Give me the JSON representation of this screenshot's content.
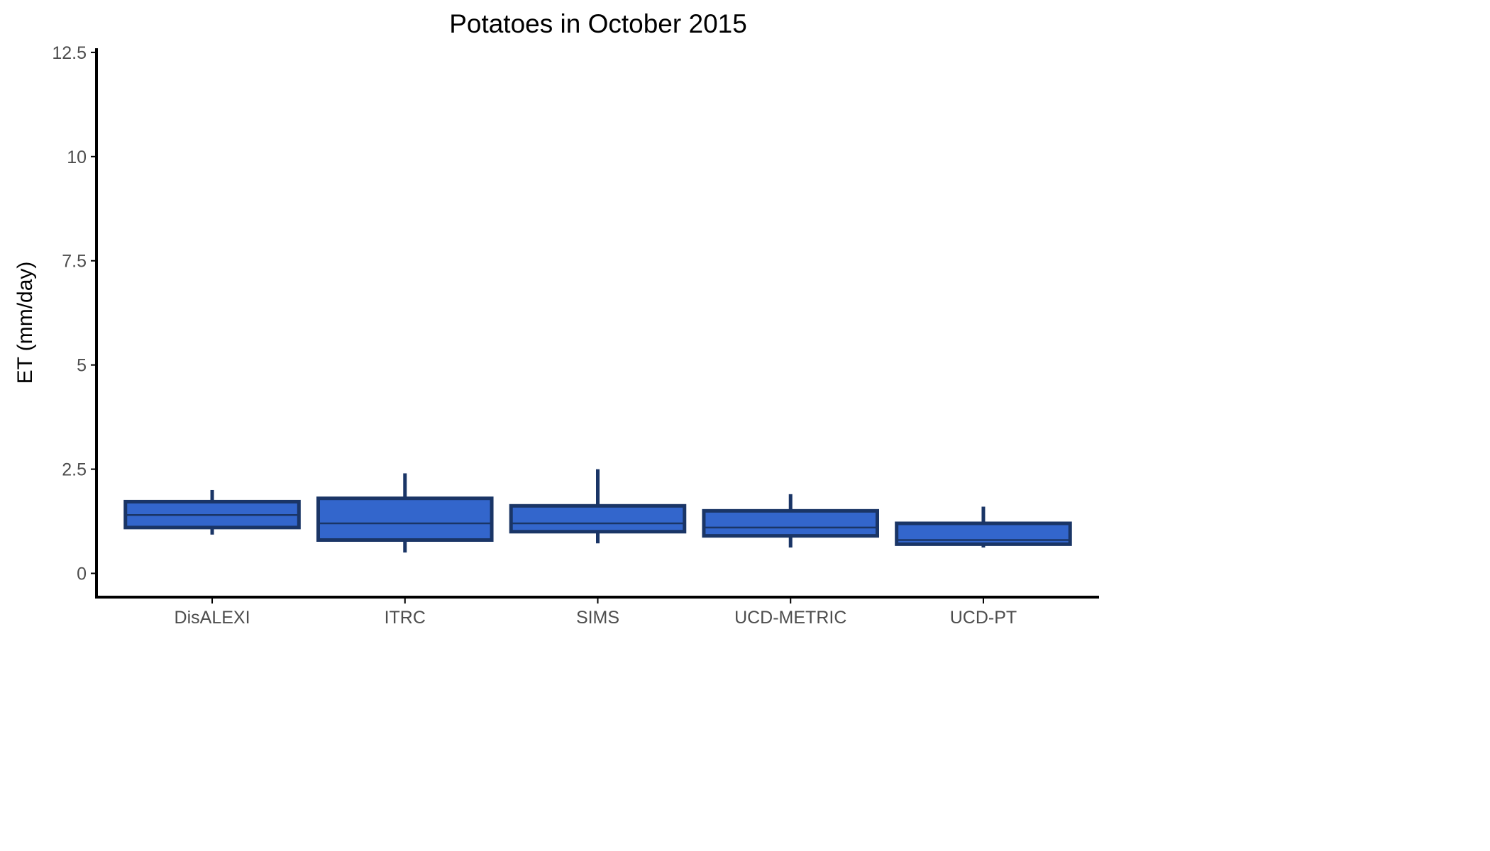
{
  "chart_data": {
    "type": "box",
    "title": "Potatoes in October 2015",
    "xlabel": "",
    "ylabel": "ET (mm/day)",
    "ylim": [
      -0.57,
      12.6
    ],
    "yticks": [
      0,
      2.5,
      5,
      7.5,
      10,
      12.5
    ],
    "ytick_labels": [
      "0",
      "2.5",
      "5",
      "7.5",
      "10",
      "12.5"
    ],
    "categories": [
      "DisALEXI",
      "ITRC",
      "SIMS",
      "UCD-METRIC",
      "UCD-PT"
    ],
    "boxes": [
      {
        "category": "DisALEXI",
        "whisker_low": 0.93,
        "q1": 1.1,
        "median": 1.4,
        "q3": 1.72,
        "whisker_high": 2.0
      },
      {
        "category": "ITRC",
        "whisker_low": 0.5,
        "q1": 0.8,
        "median": 1.2,
        "q3": 1.8,
        "whisker_high": 2.4
      },
      {
        "category": "SIMS",
        "whisker_low": 0.72,
        "q1": 1.0,
        "median": 1.2,
        "q3": 1.62,
        "whisker_high": 2.5
      },
      {
        "category": "UCD-METRIC",
        "whisker_low": 0.62,
        "q1": 0.9,
        "median": 1.1,
        "q3": 1.5,
        "whisker_high": 1.9
      },
      {
        "category": "UCD-PT",
        "whisker_low": 0.62,
        "q1": 0.7,
        "median": 0.8,
        "q3": 1.2,
        "whisker_high": 1.6
      }
    ],
    "colors": {
      "box_fill": "#3366cc",
      "box_outline": "#1a3566",
      "axis": "#000000",
      "tick_label": "#4d4d4d"
    },
    "grid": false,
    "legend": "none"
  }
}
